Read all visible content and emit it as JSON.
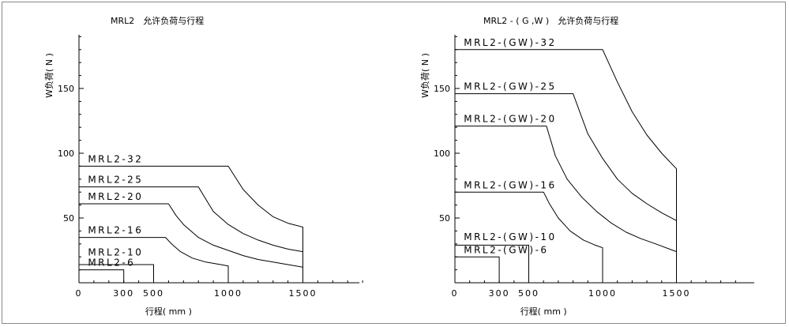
{
  "chart_data": [
    {
      "type": "line",
      "title": "MRL2　允许负荷与行程",
      "xlabel": "行程( mm )",
      "ylabel": "W负荷( N )",
      "xlim": [
        0,
        1900
      ],
      "ylim": [
        0,
        195
      ],
      "xtick_labels": [
        {
          "x": 0,
          "label": "0"
        },
        {
          "x": 300,
          "label": "300"
        },
        {
          "x": 500,
          "label": "500"
        },
        {
          "x": 1000,
          "label": "1000"
        },
        {
          "x": 1500,
          "label": "1500"
        }
      ],
      "ytick_labels": [
        {
          "y": 50,
          "label": "50"
        },
        {
          "y": 100,
          "label": "100"
        },
        {
          "y": 150,
          "label": "150"
        }
      ],
      "grid": false,
      "series": [
        {
          "name": "MRL2-32",
          "x": [
            0,
            1000,
            1100,
            1200,
            1300,
            1400,
            1500,
            1500
          ],
          "y": [
            90,
            90,
            72,
            60,
            51,
            46,
            43,
            0
          ]
        },
        {
          "name": "MRL2-25",
          "x": [
            0,
            800,
            900,
            1000,
            1100,
            1200,
            1300,
            1400,
            1500,
            1500
          ],
          "y": [
            74,
            74,
            55,
            45,
            38,
            33,
            29,
            26,
            24,
            0
          ]
        },
        {
          "name": "MRL2-20",
          "x": [
            0,
            600,
            650,
            700,
            800,
            900,
            1000,
            1100,
            1200,
            1300,
            1400,
            1500,
            1500
          ],
          "y": [
            61,
            61,
            52,
            45,
            35,
            29,
            25,
            21,
            18,
            16,
            14,
            12,
            0
          ]
        },
        {
          "name": "MRL2-16",
          "x": [
            0,
            580,
            620,
            680,
            760,
            850,
            950,
            1000,
            1000
          ],
          "y": [
            35,
            35,
            30,
            24,
            19,
            16,
            14,
            13,
            0
          ]
        },
        {
          "name": "MRL2-10",
          "x": [
            0,
            500,
            500
          ],
          "y": [
            14,
            14,
            0
          ]
        },
        {
          "name": "MRL2-6",
          "x": [
            0,
            300,
            300
          ],
          "y": [
            10,
            10,
            0
          ]
        }
      ],
      "annotations": [
        {
          "text": "MRL2-32",
          "x": 60,
          "y": 93
        },
        {
          "text": "MRL2-25",
          "x": 60,
          "y": 77
        },
        {
          "text": "MRL2-20",
          "x": 60,
          "y": 64
        },
        {
          "text": "MRL2-16",
          "x": 60,
          "y": 38
        },
        {
          "text": "MRL2-10",
          "x": 60,
          "y": 21
        },
        {
          "text": "MRL2-6",
          "x": 60,
          "y": 13
        }
      ]
    },
    {
      "type": "line",
      "title": "MRL2 - ( G ,W )　允许负荷与行程",
      "xlabel": "行程( mm )",
      "ylabel": "W负荷( N )",
      "xlim": [
        0,
        1900
      ],
      "ylim": [
        0,
        195
      ],
      "xtick_labels": [
        {
          "x": 0,
          "label": "0"
        },
        {
          "x": 300,
          "label": "300"
        },
        {
          "x": 500,
          "label": "500"
        },
        {
          "x": 1000,
          "label": "1000"
        },
        {
          "x": 1500,
          "label": "1500"
        }
      ],
      "ytick_labels": [
        {
          "y": 50,
          "label": "50"
        },
        {
          "y": 100,
          "label": "100"
        },
        {
          "y": 150,
          "label": "150"
        }
      ],
      "grid": false,
      "series": [
        {
          "name": "MRL2-(GW)-32",
          "x": [
            0,
            1000,
            1100,
            1200,
            1300,
            1400,
            1500,
            1500
          ],
          "y": [
            180,
            180,
            155,
            132,
            114,
            100,
            88,
            0
          ]
        },
        {
          "name": "MRL2-(GW)-25",
          "x": [
            0,
            800,
            900,
            1000,
            1100,
            1200,
            1300,
            1400,
            1500,
            1500
          ],
          "y": [
            146,
            146,
            115,
            96,
            80,
            69,
            61,
            54,
            48,
            0
          ]
        },
        {
          "name": "MRL2-(GW)-20",
          "x": [
            0,
            620,
            680,
            760,
            860,
            960,
            1060,
            1160,
            1260,
            1360,
            1500,
            1500
          ],
          "y": [
            121,
            121,
            98,
            80,
            66,
            55,
            46,
            39,
            34,
            30,
            24,
            0
          ]
        },
        {
          "name": "MRL2-(GW)-16",
          "x": [
            0,
            600,
            640,
            700,
            780,
            870,
            950,
            1000,
            1000
          ],
          "y": [
            70,
            70,
            61,
            50,
            40,
            33,
            29,
            27,
            0
          ]
        },
        {
          "name": "MRL2-(GW)-10",
          "x": [
            0,
            500,
            500
          ],
          "y": [
            29,
            29,
            0
          ]
        },
        {
          "name": "MRL2-(GW)-6",
          "x": [
            0,
            300,
            300
          ],
          "y": [
            20,
            20,
            0
          ]
        }
      ],
      "annotations": [
        {
          "text": "MRL2-(GW)-32",
          "x": 60,
          "y": 183
        },
        {
          "text": "MRL2-(GW)-25",
          "x": 60,
          "y": 149
        },
        {
          "text": "MRL2-(GW)-20",
          "x": 60,
          "y": 124
        },
        {
          "text": "MRL2-(GW)-16",
          "x": 60,
          "y": 73
        },
        {
          "text": "MRL2-(GW)-10",
          "x": 60,
          "y": 33
        },
        {
          "text": "MRL2-(GW)-6",
          "x": 60,
          "y": 23
        }
      ]
    }
  ]
}
